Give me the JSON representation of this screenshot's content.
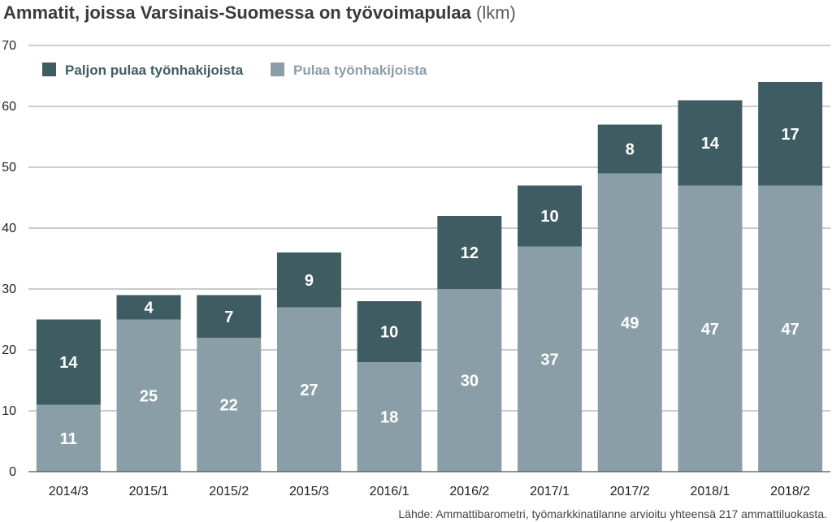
{
  "chart_data": {
    "type": "bar",
    "stacked": true,
    "title": "Ammatit, joissa Varsinais-Suomessa on työvoimapulaa",
    "title_unit": "(lkm)",
    "categories": [
      "2014/3",
      "2015/1",
      "2015/2",
      "2015/3",
      "2016/1",
      "2016/2",
      "2017/1",
      "2017/2",
      "2018/1",
      "2018/2"
    ],
    "series": [
      {
        "name": "Pulaa työnhakijoista",
        "values": [
          11,
          25,
          22,
          27,
          18,
          30,
          37,
          49,
          47,
          47
        ],
        "color": "#8a9ea8"
      },
      {
        "name": "Paljon pulaa työnhakijoista",
        "values": [
          14,
          4,
          7,
          9,
          10,
          12,
          10,
          8,
          14,
          17
        ],
        "color": "#405c63"
      }
    ],
    "legend_order": [
      "Paljon pulaa työnhakijoista",
      "Pulaa työnhakijoista"
    ],
    "legend_position": "top-left",
    "ylim": [
      0,
      70
    ],
    "yticks": [
      0,
      10,
      20,
      30,
      40,
      50,
      60,
      70
    ],
    "grid": true,
    "xlabel": "",
    "ylabel": "",
    "source": "Lähde: Ammattibarometri, työmarkkinatilanne arvioitu yhteensä 217 ammattiluokasta."
  }
}
